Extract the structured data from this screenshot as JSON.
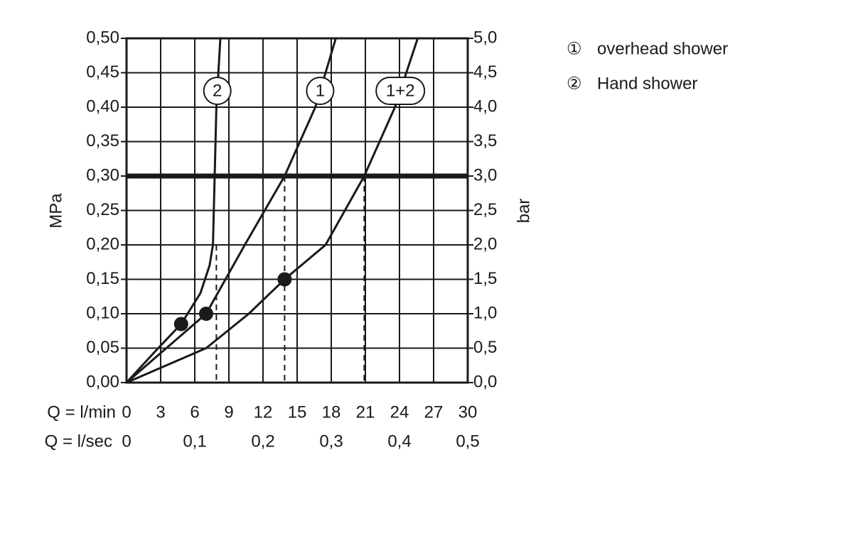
{
  "chart_data": {
    "type": "line",
    "ylabel": "MPa",
    "y2label": "bar",
    "xlabel": "Q = l/min",
    "x2label": "Q = l/sec",
    "xlim": [
      0,
      30
    ],
    "xticks": [
      0,
      3,
      6,
      9,
      12,
      15,
      18,
      21,
      24,
      27,
      30
    ],
    "x2lim": [
      0,
      0.5
    ],
    "x2ticks": [
      0,
      {
        "value": 0.1,
        "label": "0,1"
      },
      {
        "value": 0.2,
        "label": "0,2"
      },
      {
        "value": 0.3,
        "label": "0,3"
      },
      {
        "value": 0.4,
        "label": "0,4"
      },
      {
        "value": 0.5,
        "label": "0,5"
      }
    ],
    "ylim": [
      0,
      0.5
    ],
    "yticks": [
      {
        "value": 0,
        "label": "0,00"
      },
      {
        "value": 0.05,
        "label": "0,05"
      },
      {
        "value": 0.1,
        "label": "0,10"
      },
      {
        "value": 0.15,
        "label": "0,15"
      },
      {
        "value": 0.2,
        "label": "0,20"
      },
      {
        "value": 0.25,
        "label": "0,25"
      },
      {
        "value": 0.3,
        "label": "0,30"
      },
      {
        "value": 0.35,
        "label": "0,35"
      },
      {
        "value": 0.4,
        "label": "0,40"
      },
      {
        "value": 0.45,
        "label": "0,45"
      },
      {
        "value": 0.5,
        "label": "0,50"
      }
    ],
    "y2lim": [
      0,
      5
    ],
    "y2ticks": [
      {
        "value": 0,
        "label": "0,0"
      },
      {
        "value": 0.5,
        "label": "0,5"
      },
      {
        "value": 1,
        "label": "1,0"
      },
      {
        "value": 1.5,
        "label": "1,5"
      },
      {
        "value": 2,
        "label": "2,0"
      },
      {
        "value": 2.5,
        "label": "2,5"
      },
      {
        "value": 3,
        "label": "3,0"
      },
      {
        "value": 3.5,
        "label": "3,5"
      },
      {
        "value": 4,
        "label": "4,0"
      },
      {
        "value": 4.5,
        "label": "4,5"
      },
      {
        "value": 5,
        "label": "5,0"
      }
    ],
    "grid": true,
    "color": "#1a1a1a",
    "series": [
      {
        "name": "2",
        "x": [
          0,
          2.5,
          4.8,
          6.5,
          7.3,
          7.6,
          7.75,
          7.9,
          8.25
        ],
        "values": [
          0,
          0.045,
          0.085,
          0.13,
          0.17,
          0.2,
          0.3,
          0.4,
          0.5
        ]
      },
      {
        "name": "1",
        "x": [
          0,
          3.5,
          7,
          10.4,
          13.9,
          16.6,
          18.4
        ],
        "values": [
          0,
          0.05,
          0.1,
          0.2,
          0.3,
          0.4,
          0.5
        ]
      },
      {
        "name": "1+2",
        "x": [
          0,
          7,
          10.75,
          13.9,
          17.5,
          20.9,
          23.6,
          25.6
        ],
        "values": [
          0,
          0.05,
          0.1,
          0.15,
          0.2,
          0.3,
          0.4,
          0.5
        ]
      }
    ],
    "points": [
      {
        "x": 4.8,
        "y": 0.085
      },
      {
        "x": 7,
        "y": 0.1
      },
      {
        "x": 13.9,
        "y": 0.15
      }
    ],
    "hline": 0.3,
    "droplines": [
      {
        "x": 7.9,
        "y": 0.2
      },
      {
        "x": 13.9,
        "y": 0.3
      },
      {
        "x": 20.9,
        "y": 0.3
      }
    ],
    "legend": [
      {
        "symbol": "①",
        "label": "overhead shower"
      },
      {
        "symbol": "②",
        "label": "Hand shower"
      }
    ]
  }
}
